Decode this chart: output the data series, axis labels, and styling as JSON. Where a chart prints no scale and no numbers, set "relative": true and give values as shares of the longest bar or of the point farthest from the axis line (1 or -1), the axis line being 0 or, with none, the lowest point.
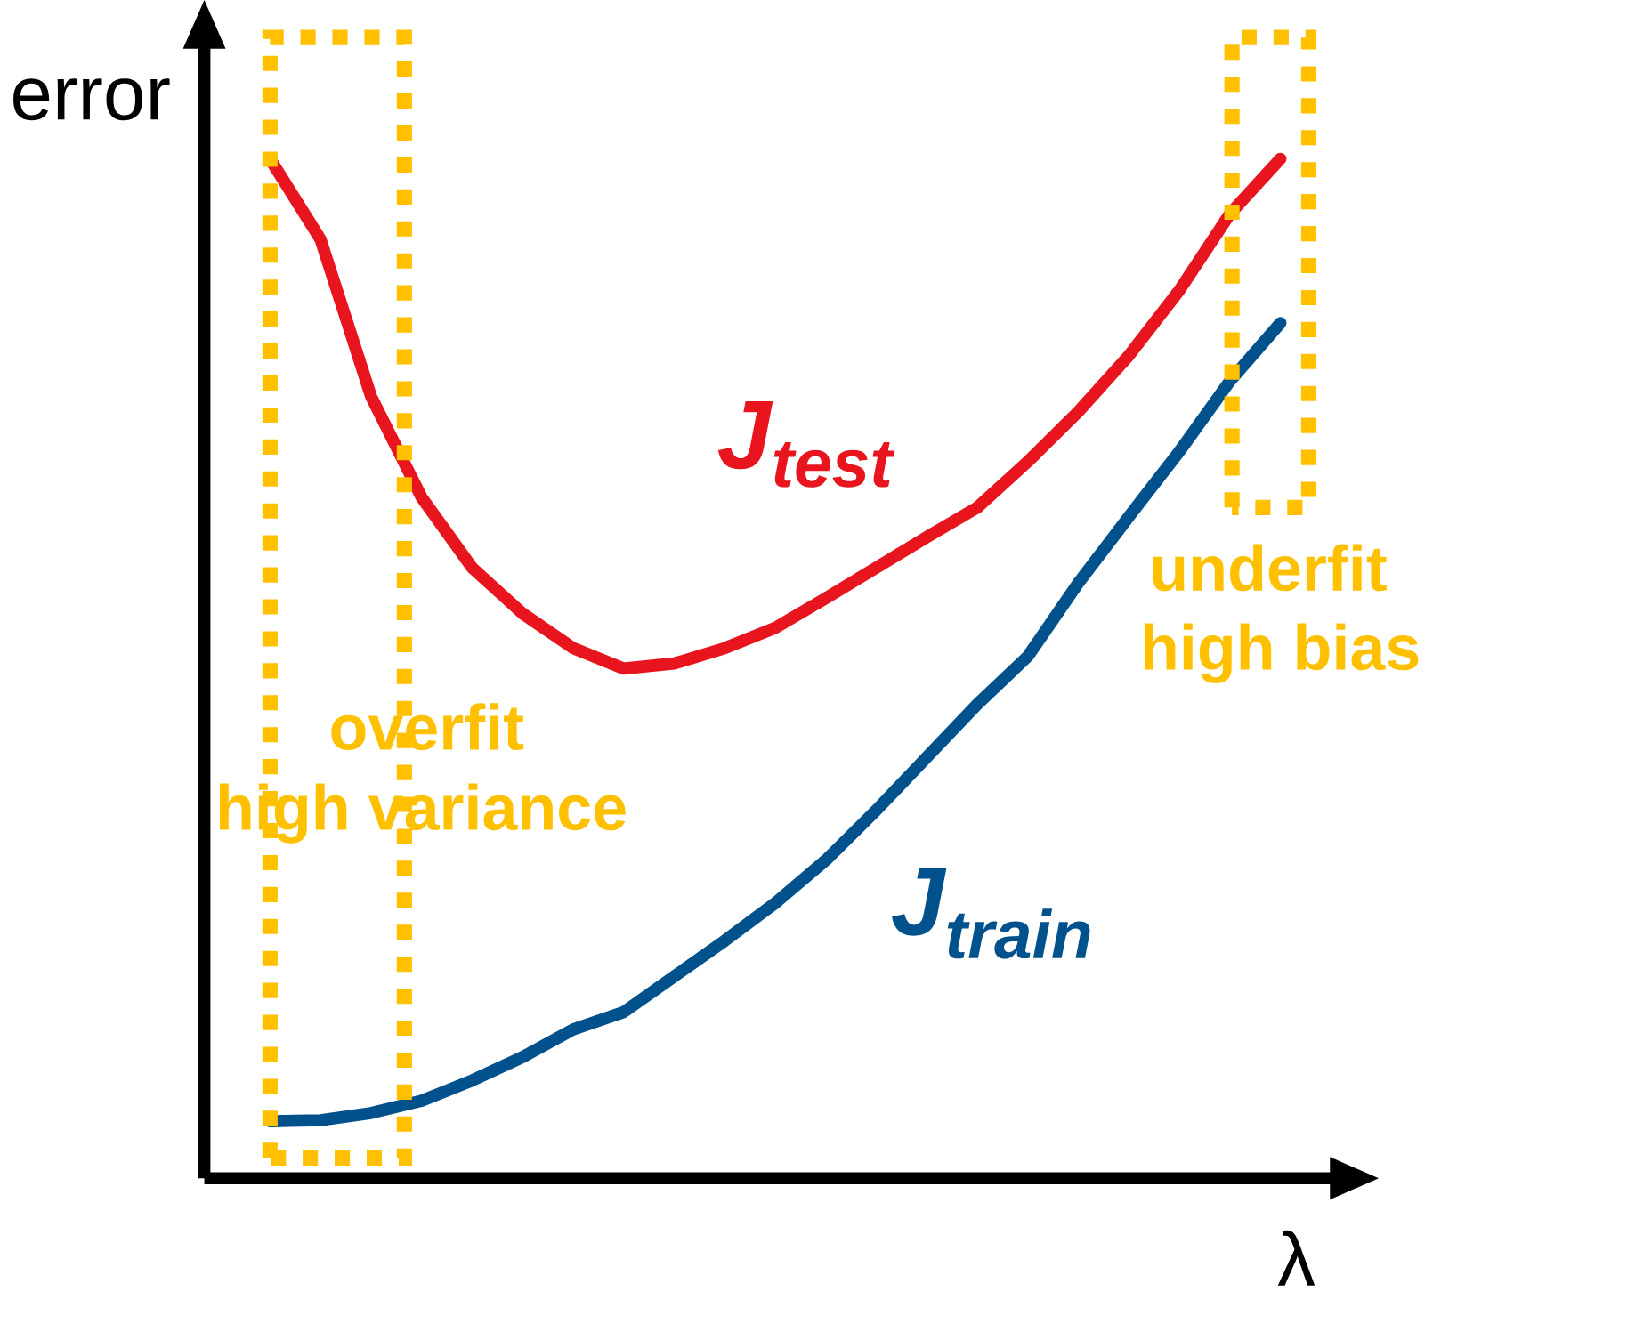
{
  "chart_data": {
    "type": "line",
    "relative": true,
    "xlabel": "λ",
    "ylabel": "error",
    "categories": [
      null,
      null,
      null,
      null,
      null,
      null,
      null,
      null,
      null,
      null,
      null,
      null,
      null,
      null,
      null,
      null,
      null,
      null,
      null,
      null,
      null
    ],
    "series": [
      {
        "name": "J$_{test}$",
        "color": "#e8141e",
        "values": [
          1.0,
          0.921,
          0.767,
          0.668,
          0.599,
          0.554,
          0.52,
          0.5,
          0.505,
          0.52,
          0.54,
          0.569,
          0.599,
          0.629,
          0.658,
          0.703,
          0.752,
          0.807,
          0.871,
          0.946,
          1.0
        ]
      },
      {
        "name": "J$_{train}$",
        "color": "#00518c",
        "values": [
          0.056,
          0.057,
          0.064,
          0.076,
          0.096,
          0.119,
          0.146,
          0.163,
          0.198,
          0.233,
          0.27,
          0.312,
          0.361,
          0.413,
          0.465,
          0.512,
          0.584,
          0.649,
          0.713,
          0.782,
          0.839
        ]
      }
    ],
    "annotations": [
      "overfit",
      "high variance",
      "underfit",
      "high bias"
    ],
    "marker": "none",
    "line_style": "solid"
  }
}
